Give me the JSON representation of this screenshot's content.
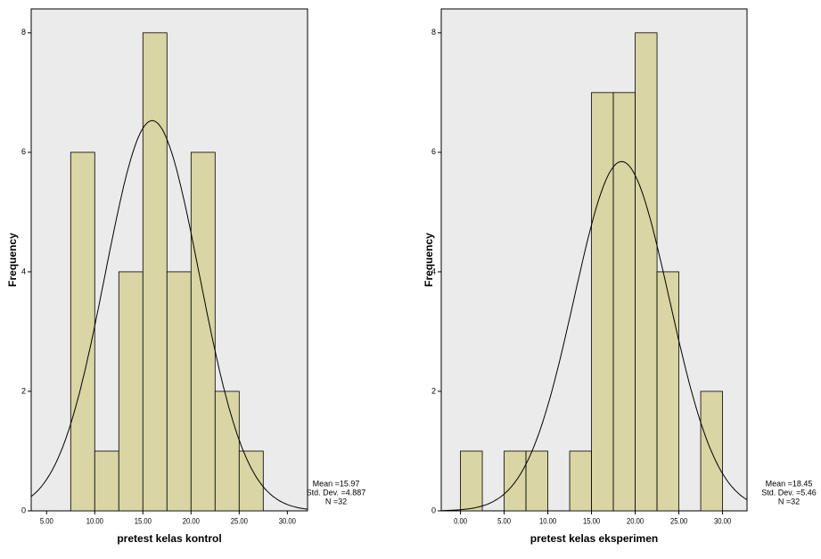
{
  "chart_data": [
    {
      "type": "histogram",
      "x_label": "pretest kelas kontrol",
      "y_label": "Frequency",
      "bins": [
        7.5,
        10,
        12.5,
        15,
        17.5,
        20,
        22.5,
        25,
        27.5
      ],
      "values": [
        6,
        1,
        4,
        8,
        4,
        6,
        2,
        1
      ],
      "color": "#d9d5a4",
      "xlim": [
        3.4,
        32.1
      ],
      "xticks": [
        {
          "value": 5,
          "label": "5.00"
        },
        {
          "value": 10,
          "label": "10.00"
        },
        {
          "value": 15,
          "label": "15.00"
        },
        {
          "value": 20,
          "label": "20.00"
        },
        {
          "value": 25,
          "label": "25.00"
        },
        {
          "value": 30,
          "label": "30.00"
        }
      ],
      "ylim": [
        0,
        8.4
      ],
      "yticks": [
        0,
        2,
        4,
        6,
        8
      ],
      "stats": {
        "values": [
          15.97,
          4.887,
          32
        ],
        "value_labels": [
          "Mean =15.97",
          "Std. Dev. =4.887",
          "N =32"
        ]
      }
    },
    {
      "type": "histogram",
      "x_label": "pretest kelas eksperimen",
      "y_label": "Frequency",
      "bins": [
        0,
        2.5,
        5,
        7.5,
        10,
        12.5,
        15,
        17.5,
        20,
        22.5,
        25,
        27.5,
        30
      ],
      "values": [
        1,
        0,
        1,
        1,
        0,
        1,
        7,
        7,
        8,
        4,
        0,
        2
      ],
      "color": "#d9d5a4",
      "xlim": [
        -2.2,
        32.8
      ],
      "xticks": [
        {
          "value": 0,
          "label": "0.00"
        },
        {
          "value": 5,
          "label": "5.00"
        },
        {
          "value": 10,
          "label": "10.00"
        },
        {
          "value": 15,
          "label": "15.00"
        },
        {
          "value": 20,
          "label": "20.00"
        },
        {
          "value": 25,
          "label": "25.00"
        },
        {
          "value": 30,
          "label": "30.00"
        }
      ],
      "ylim": [
        0,
        8.4
      ],
      "yticks": [
        0,
        2,
        4,
        6,
        8
      ],
      "stats": {
        "values": [
          18.45,
          5.46,
          32
        ],
        "value_labels": [
          "Mean =18.45",
          "Std. Dev. =5.46",
          "N =32"
        ]
      }
    }
  ]
}
